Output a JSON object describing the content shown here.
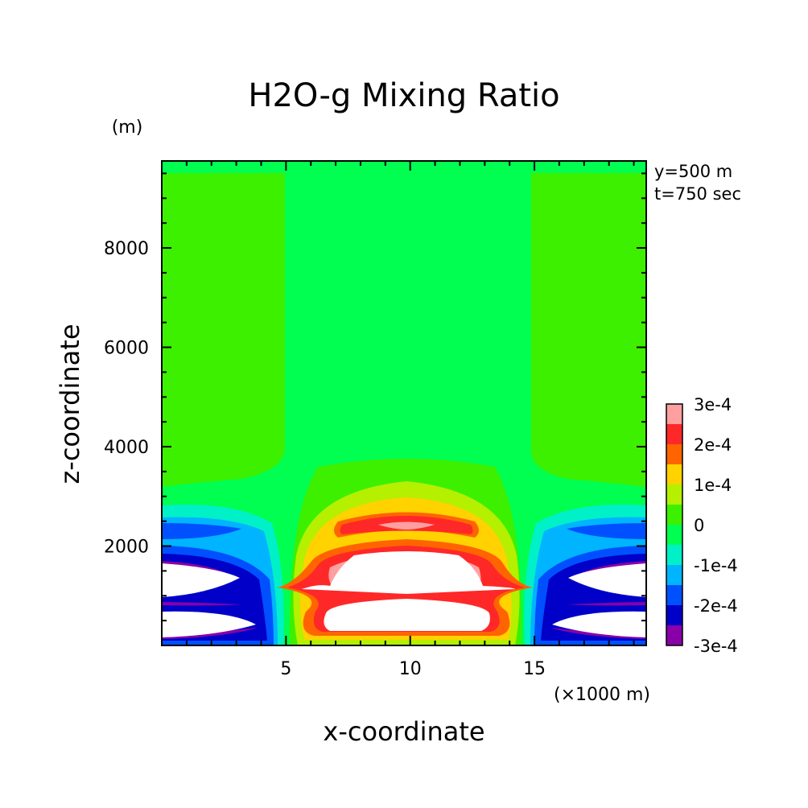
{
  "chart_data": {
    "type": "heatmap",
    "title": "H2O-g Mixing Ratio",
    "xlabel": "x-coordinate",
    "ylabel": "z-coordinate",
    "x_unit": "(×1000 m)",
    "y_unit": "(m)",
    "xlim": [
      0,
      19.5
    ],
    "ylim": [
      0,
      9750
    ],
    "x_ticks": [
      {
        "value": 5,
        "label": "5"
      },
      {
        "value": 10,
        "label": "10"
      },
      {
        "value": 15,
        "label": "15"
      }
    ],
    "y_ticks": [
      {
        "value": 2000,
        "label": "2000"
      },
      {
        "value": 4000,
        "label": "4000"
      },
      {
        "value": 6000,
        "label": "6000"
      },
      {
        "value": 8000,
        "label": "8000"
      }
    ],
    "annotations": [
      "y=500 m",
      "t=750 sec"
    ],
    "colorbar": {
      "levels": [
        {
          "min": -0.0003,
          "max": -0.00025,
          "color": "#8a00a8"
        },
        {
          "min": -0.00025,
          "max": -0.0002,
          "color": "#0000c8"
        },
        {
          "min": -0.0002,
          "max": -0.00015,
          "color": "#0050ff"
        },
        {
          "min": -0.00015,
          "max": -0.0001,
          "color": "#00b4ff"
        },
        {
          "min": -0.0001,
          "max": -5e-05,
          "color": "#00f0c8"
        },
        {
          "min": -5e-05,
          "max": 0,
          "color": "#00ff50"
        },
        {
          "min": 0,
          "max": 5e-05,
          "color": "#3cf000"
        },
        {
          "min": 5e-05,
          "max": 0.0001,
          "color": "#b4f000"
        },
        {
          "min": 0.0001,
          "max": 0.00015,
          "color": "#ffd200"
        },
        {
          "min": 0.00015,
          "max": 0.0002,
          "color": "#ff6400"
        },
        {
          "min": 0.0002,
          "max": 0.00025,
          "color": "#ff2828"
        },
        {
          "min": 0.00025,
          "max": 0.0003,
          "color": "#ffa0a0"
        }
      ],
      "labels": [
        "3e-4",
        "2e-4",
        "1e-4",
        "0",
        "-1e-4",
        "-2e-4",
        "-3e-4"
      ]
    }
  }
}
